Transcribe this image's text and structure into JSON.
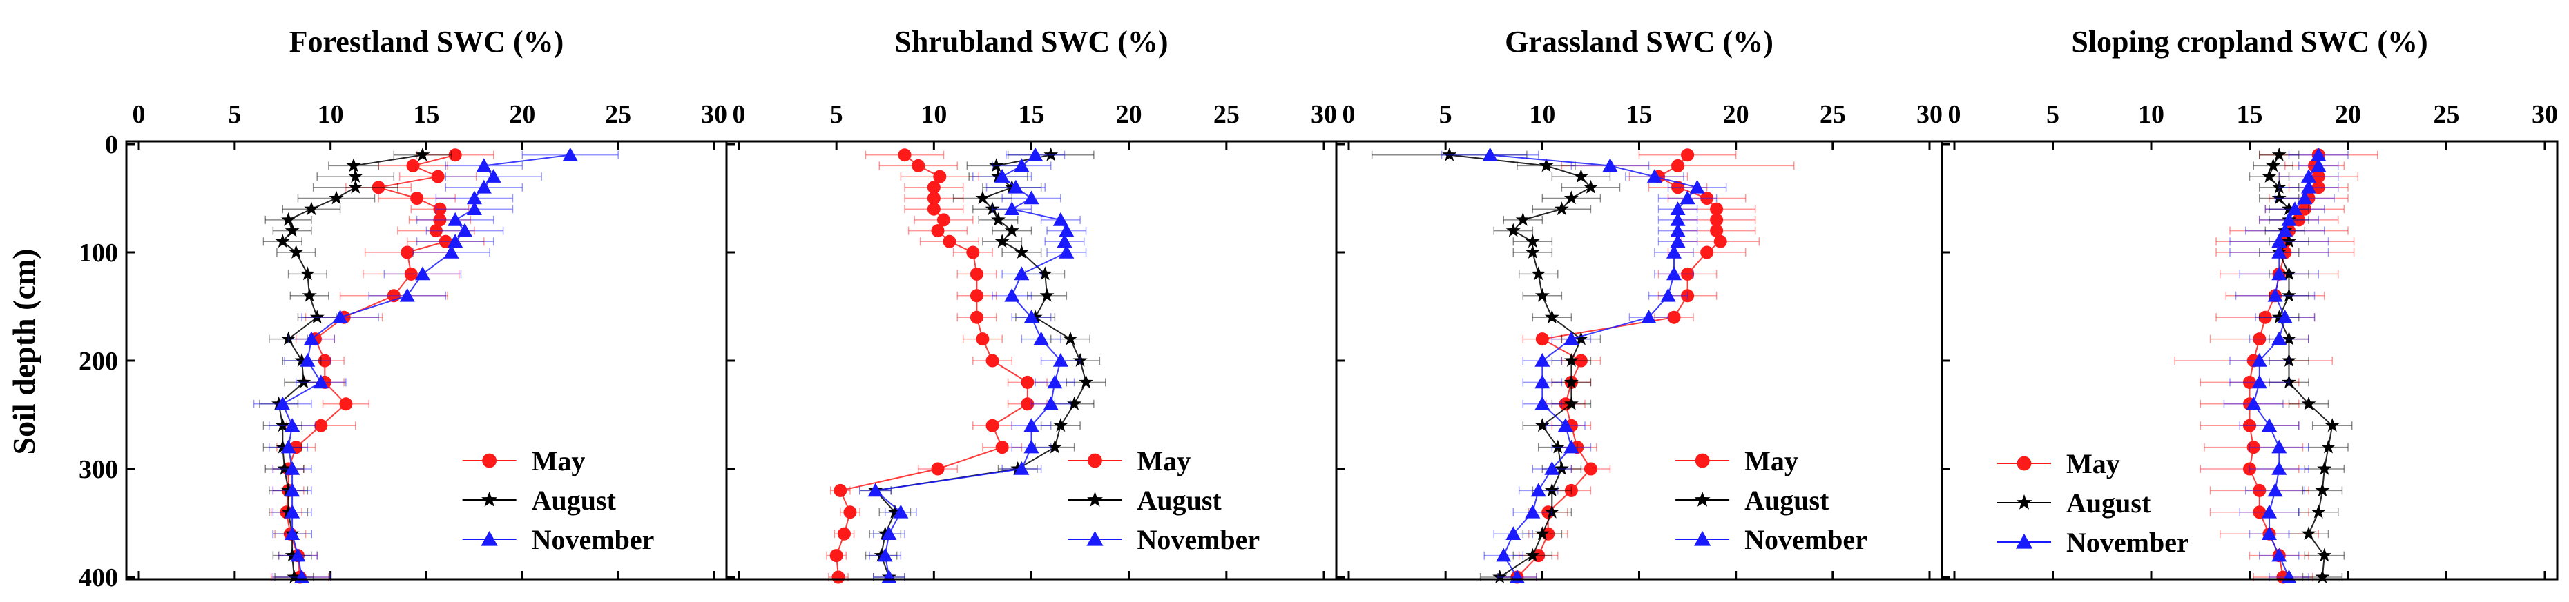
{
  "y_axis_label": "Soil depth (cm)",
  "colors": {
    "May": "#ff1a1a",
    "August": "#000000",
    "November": "#1a1aff"
  },
  "chart_data": [
    {
      "type": "line",
      "title": "Forestland SWC (%)",
      "xlim": [
        0,
        30
      ],
      "ylim": [
        0,
        400
      ],
      "x_ticks": [
        0,
        5,
        10,
        15,
        20,
        25,
        30
      ],
      "y_ticks": [
        0,
        100,
        200,
        300,
        400
      ],
      "legend": [
        "May",
        "August",
        "November"
      ],
      "legend_position": "bottom-right",
      "series": [
        {
          "name": "May",
          "marker": "circle",
          "depth": [
            10,
            20,
            30,
            40,
            50,
            60,
            70,
            80,
            90,
            100,
            120,
            140,
            160,
            180,
            200,
            220,
            240,
            260,
            280,
            300,
            320,
            340,
            360,
            380,
            400
          ],
          "swc": [
            16.5,
            14.3,
            15.6,
            12.5,
            14.5,
            15.7,
            15.7,
            15.5,
            16.0,
            14.0,
            14.2,
            13.3,
            10.7,
            9.2,
            9.7,
            9.7,
            10.8,
            9.5,
            8.2,
            7.8,
            7.8,
            7.7,
            7.9,
            8.3,
            8.4
          ],
          "err": [
            2.0,
            1.8,
            2.0,
            1.7,
            2.0,
            1.5,
            1.6,
            2.0,
            2.0,
            2.2,
            2.5,
            2.8,
            2.0,
            1.0,
            1.0,
            1.0,
            1.2,
            1.8,
            1.0,
            0.8,
            0.8,
            0.8,
            0.8,
            1.0,
            1.5
          ]
        },
        {
          "name": "August",
          "marker": "star",
          "depth": [
            10,
            20,
            30,
            40,
            50,
            60,
            70,
            80,
            90,
            100,
            120,
            140,
            160,
            180,
            200,
            220,
            240,
            260,
            280,
            300,
            320,
            340,
            360,
            380,
            400
          ],
          "swc": [
            14.8,
            11.2,
            11.3,
            11.3,
            10.3,
            9.0,
            7.8,
            8.0,
            7.5,
            8.2,
            8.8,
            8.9,
            9.3,
            7.8,
            8.5,
            8.6,
            7.3,
            7.5,
            7.5,
            7.6,
            7.8,
            7.8,
            8.0,
            8.0,
            8.1
          ],
          "err": [
            1.5,
            1.3,
            2.0,
            2.2,
            2.0,
            1.5,
            1.2,
            1.0,
            1.0,
            1.0,
            1.0,
            1.0,
            1.0,
            1.0,
            1.0,
            1.0,
            1.0,
            1.0,
            1.0,
            1.0,
            1.0,
            1.0,
            1.0,
            1.0,
            1.0
          ]
        },
        {
          "name": "November",
          "marker": "triangle",
          "depth": [
            10,
            20,
            30,
            40,
            50,
            60,
            70,
            80,
            90,
            100,
            120,
            140,
            160,
            180,
            200,
            220,
            240,
            260,
            280,
            300,
            320,
            340,
            360,
            380,
            400
          ],
          "swc": [
            22.5,
            18.0,
            18.5,
            18.0,
            17.5,
            17.5,
            16.5,
            17.0,
            16.5,
            16.3,
            14.8,
            14.0,
            10.5,
            9.0,
            8.8,
            9.5,
            7.5,
            8.0,
            7.8,
            8.0,
            8.0,
            8.0,
            8.0,
            8.3,
            8.5
          ],
          "err": [
            2.5,
            2.0,
            2.5,
            2.0,
            2.0,
            2.0,
            2.0,
            2.0,
            2.0,
            2.0,
            2.0,
            2.0,
            2.0,
            1.2,
            1.2,
            1.3,
            1.5,
            1.2,
            1.0,
            1.0,
            1.0,
            1.0,
            1.0,
            1.0,
            1.5
          ]
        }
      ]
    },
    {
      "type": "line",
      "title": "Shrubland SWC (%)",
      "xlim": [
        0,
        30
      ],
      "ylim": [
        0,
        400
      ],
      "x_ticks": [
        0,
        5,
        10,
        15,
        20,
        25,
        30
      ],
      "y_ticks": [
        0,
        100,
        200,
        300,
        400
      ],
      "legend": [
        "May",
        "August",
        "November"
      ],
      "legend_position": "bottom-right",
      "series": [
        {
          "name": "May",
          "marker": "circle",
          "depth": [
            10,
            20,
            30,
            40,
            50,
            60,
            70,
            80,
            90,
            100,
            120,
            140,
            160,
            180,
            200,
            220,
            240,
            260,
            280,
            300,
            320,
            340,
            360,
            380,
            400
          ],
          "swc": [
            8.5,
            9.2,
            10.3,
            10.0,
            10.0,
            10.0,
            10.5,
            10.2,
            10.8,
            12.0,
            12.2,
            12.2,
            12.2,
            12.5,
            13.0,
            14.8,
            14.8,
            13.0,
            13.5,
            10.2,
            5.2,
            5.7,
            5.4,
            5.0,
            5.1
          ],
          "err": [
            2.0,
            2.0,
            2.0,
            1.5,
            1.5,
            1.5,
            1.5,
            1.5,
            1.5,
            1.0,
            1.0,
            1.0,
            1.0,
            1.0,
            1.0,
            1.0,
            1.0,
            1.0,
            1.0,
            1.0,
            0.5,
            0.5,
            0.5,
            0.5,
            0.5
          ]
        },
        {
          "name": "August",
          "marker": "star",
          "depth": [
            10,
            20,
            30,
            40,
            50,
            60,
            70,
            80,
            90,
            100,
            120,
            140,
            160,
            180,
            200,
            220,
            240,
            260,
            280,
            300,
            320,
            340,
            360,
            380,
            400
          ],
          "swc": [
            16.0,
            13.2,
            13.3,
            14.0,
            12.5,
            13.0,
            13.3,
            14.0,
            13.5,
            14.5,
            15.7,
            15.8,
            15.2,
            17.0,
            17.5,
            17.8,
            17.2,
            16.5,
            16.2,
            14.3,
            7.0,
            8.0,
            7.5,
            7.3,
            7.7
          ],
          "err": [
            2.2,
            1.5,
            1.5,
            1.5,
            1.5,
            1.0,
            1.0,
            1.0,
            1.0,
            1.0,
            1.0,
            1.0,
            1.0,
            1.0,
            1.0,
            1.0,
            1.0,
            1.0,
            1.0,
            1.0,
            0.8,
            0.8,
            0.8,
            0.8,
            0.8
          ]
        },
        {
          "name": "November",
          "marker": "triangle",
          "depth": [
            10,
            20,
            30,
            40,
            50,
            60,
            70,
            80,
            90,
            100,
            120,
            140,
            160,
            180,
            200,
            220,
            240,
            260,
            280,
            300,
            320,
            340,
            360,
            380,
            400
          ],
          "swc": [
            15.2,
            14.5,
            13.5,
            14.2,
            15.0,
            14.0,
            16.5,
            16.8,
            16.7,
            16.8,
            14.5,
            14.0,
            15.0,
            15.5,
            16.5,
            16.2,
            16.0,
            15.0,
            15.0,
            14.5,
            7.0,
            8.3,
            7.7,
            7.5,
            7.7
          ],
          "err": [
            1.5,
            1.5,
            1.5,
            1.5,
            1.5,
            1.0,
            1.0,
            1.0,
            1.0,
            1.0,
            1.0,
            1.0,
            1.0,
            1.0,
            1.0,
            1.0,
            1.0,
            1.0,
            1.0,
            1.0,
            0.8,
            0.8,
            0.8,
            0.8,
            0.8
          ]
        }
      ]
    },
    {
      "type": "line",
      "title": "Grassland SWC (%)",
      "xlim": [
        0,
        30
      ],
      "ylim": [
        0,
        400
      ],
      "x_ticks": [
        0,
        5,
        10,
        15,
        20,
        25,
        30
      ],
      "y_ticks": [
        0,
        100,
        200,
        300,
        400
      ],
      "legend": [
        "May",
        "August",
        "November"
      ],
      "legend_position": "bottom-right",
      "series": [
        {
          "name": "May",
          "marker": "circle",
          "depth": [
            10,
            20,
            30,
            40,
            50,
            60,
            70,
            80,
            90,
            100,
            120,
            140,
            160,
            180,
            200,
            220,
            240,
            260,
            280,
            300,
            320,
            340,
            360,
            380,
            400
          ],
          "swc": [
            17.5,
            17.0,
            16.0,
            17.0,
            18.5,
            19.0,
            19.0,
            19.0,
            19.2,
            18.5,
            17.5,
            17.5,
            16.8,
            10.0,
            12.0,
            11.5,
            11.2,
            11.5,
            11.8,
            12.5,
            11.5,
            10.3,
            10.3,
            9.8,
            8.7
          ],
          "err": [
            2.5,
            6.0,
            1.5,
            1.5,
            2.0,
            2.0,
            2.0,
            2.0,
            2.0,
            2.0,
            1.5,
            1.5,
            1.0,
            1.0,
            1.0,
            1.0,
            1.0,
            1.0,
            1.0,
            1.0,
            1.0,
            1.0,
            1.0,
            1.0,
            1.0
          ]
        },
        {
          "name": "August",
          "marker": "star",
          "depth": [
            10,
            20,
            30,
            40,
            50,
            60,
            70,
            80,
            90,
            100,
            120,
            140,
            160,
            180,
            200,
            220,
            240,
            260,
            280,
            300,
            320,
            340,
            360,
            380,
            400
          ],
          "swc": [
            5.2,
            10.2,
            12.0,
            12.5,
            11.5,
            11.0,
            9.0,
            8.5,
            9.5,
            9.5,
            9.8,
            10.0,
            10.5,
            12.0,
            11.5,
            11.5,
            11.5,
            10.0,
            10.8,
            11.0,
            10.5,
            10.5,
            10.0,
            9.5,
            7.8
          ],
          "err": [
            4.0,
            1.5,
            1.5,
            1.5,
            1.5,
            1.5,
            1.0,
            1.0,
            1.0,
            1.0,
            1.0,
            1.0,
            1.0,
            1.0,
            1.0,
            1.0,
            1.0,
            1.0,
            1.0,
            1.0,
            1.0,
            1.0,
            1.0,
            1.0,
            1.0
          ]
        },
        {
          "name": "November",
          "marker": "triangle",
          "depth": [
            10,
            20,
            30,
            40,
            50,
            60,
            70,
            80,
            90,
            100,
            120,
            140,
            160,
            180,
            200,
            220,
            240,
            260,
            280,
            300,
            320,
            340,
            360,
            380,
            400
          ],
          "swc": [
            7.3,
            13.5,
            15.8,
            18.0,
            17.5,
            17.0,
            17.0,
            17.0,
            17.0,
            16.8,
            16.8,
            16.5,
            15.5,
            11.5,
            10.0,
            10.0,
            10.0,
            11.2,
            11.5,
            10.5,
            9.8,
            9.5,
            8.5,
            8.0,
            8.7
          ],
          "err": [
            2.5,
            2.0,
            1.5,
            1.5,
            1.5,
            1.0,
            1.0,
            1.0,
            1.0,
            1.0,
            1.0,
            1.0,
            1.0,
            1.0,
            1.0,
            1.0,
            1.0,
            1.0,
            1.0,
            1.0,
            1.0,
            1.0,
            1.0,
            1.0,
            1.0
          ]
        }
      ]
    },
    {
      "type": "line",
      "title": "Sloping cropland SWC (%)",
      "xlim": [
        0,
        30
      ],
      "ylim": [
        0,
        400
      ],
      "x_ticks": [
        0,
        5,
        10,
        15,
        20,
        25,
        30
      ],
      "y_ticks": [
        0,
        100,
        200,
        300,
        400
      ],
      "legend": [
        "May",
        "August",
        "November"
      ],
      "legend_position": "bottom-left",
      "series": [
        {
          "name": "May",
          "marker": "circle",
          "depth": [
            10,
            20,
            30,
            40,
            50,
            60,
            70,
            80,
            90,
            100,
            120,
            140,
            160,
            180,
            200,
            220,
            240,
            260,
            280,
            300,
            320,
            340,
            360,
            380,
            400
          ],
          "swc": [
            18.5,
            18.3,
            18.5,
            18.5,
            18.0,
            17.8,
            17.5,
            17.0,
            16.8,
            16.8,
            16.5,
            16.3,
            15.8,
            15.5,
            15.2,
            15.0,
            15.0,
            15.0,
            15.2,
            15.0,
            15.5,
            15.5,
            16.0,
            16.5,
            16.7
          ],
          "err": [
            3.0,
            1.5,
            2.0,
            1.5,
            2.0,
            2.0,
            2.0,
            3.0,
            3.5,
            3.5,
            3.0,
            2.5,
            2.5,
            2.5,
            4.0,
            2.5,
            2.5,
            2.5,
            2.5,
            2.5,
            2.5,
            2.5,
            2.5,
            1.5,
            1.5
          ]
        },
        {
          "name": "August",
          "marker": "star",
          "depth": [
            10,
            20,
            30,
            40,
            50,
            60,
            70,
            80,
            90,
            100,
            120,
            140,
            160,
            180,
            200,
            220,
            240,
            260,
            280,
            300,
            320,
            340,
            360,
            380,
            400
          ],
          "swc": [
            16.5,
            16.2,
            16.0,
            16.5,
            16.5,
            17.0,
            17.0,
            16.8,
            17.0,
            16.5,
            17.0,
            17.0,
            16.5,
            17.0,
            17.0,
            17.0,
            18.0,
            19.2,
            19.0,
            18.8,
            18.7,
            18.5,
            18.0,
            18.8,
            18.7
          ],
          "err": [
            1.0,
            1.0,
            1.0,
            1.0,
            1.0,
            1.0,
            1.0,
            1.0,
            1.0,
            1.0,
            1.0,
            1.0,
            1.0,
            1.0,
            1.0,
            1.0,
            1.0,
            1.0,
            1.0,
            1.0,
            1.0,
            1.0,
            1.0,
            1.0,
            1.0
          ]
        },
        {
          "name": "November",
          "marker": "triangle",
          "depth": [
            10,
            20,
            30,
            40,
            50,
            60,
            70,
            80,
            90,
            100,
            120,
            140,
            160,
            180,
            200,
            220,
            240,
            260,
            280,
            300,
            320,
            340,
            360,
            380,
            400
          ],
          "swc": [
            18.5,
            18.5,
            18.0,
            18.0,
            17.8,
            17.3,
            17.0,
            16.8,
            16.5,
            16.5,
            16.5,
            16.3,
            16.8,
            16.5,
            15.5,
            15.5,
            15.2,
            16.0,
            16.5,
            16.5,
            16.3,
            16.0,
            16.0,
            16.5,
            17.0
          ],
          "err": [
            1.5,
            1.0,
            1.5,
            1.5,
            1.5,
            1.5,
            1.5,
            2.0,
            2.5,
            2.5,
            2.0,
            2.0,
            1.5,
            1.5,
            1.5,
            1.5,
            1.5,
            1.5,
            1.5,
            1.5,
            1.5,
            1.5,
            1.0,
            1.0,
            1.0
          ]
        }
      ]
    }
  ]
}
